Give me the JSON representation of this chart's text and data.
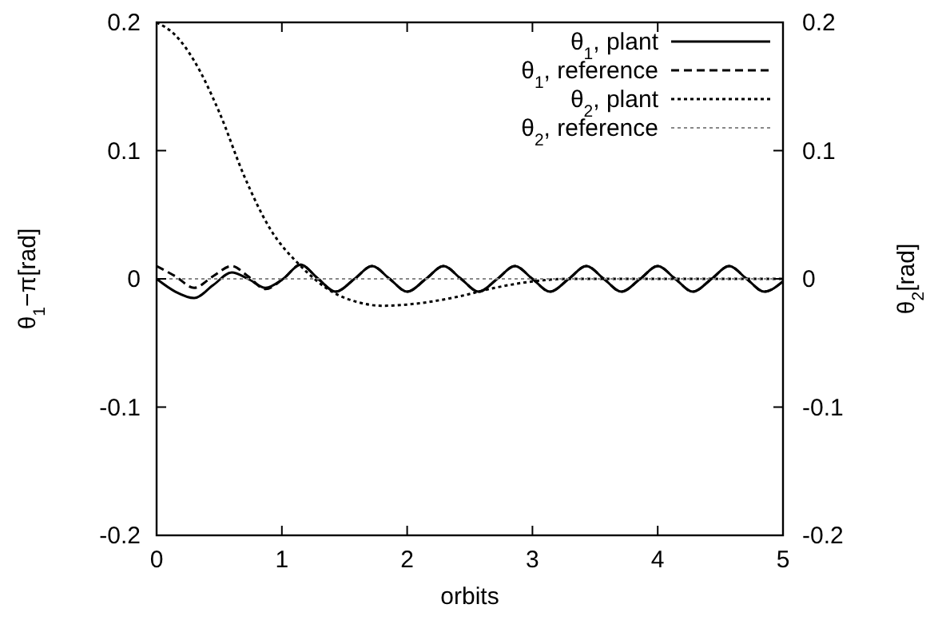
{
  "chart_data": {
    "type": "line",
    "xlabel": "orbits",
    "ylabel": "θ$_{1}$−π[rad]",
    "y2label": "θ$_{2}$[rad]",
    "xlim": [
      0,
      5
    ],
    "xticks": [
      0,
      1,
      2,
      3,
      4,
      5
    ],
    "ylim": [
      -0.2,
      0.2
    ],
    "yticks": [
      -0.2,
      -0.1,
      0,
      0.1,
      0.2
    ],
    "y2lim": [
      -0.2,
      0.2
    ],
    "y2ticks": [
      -0.2,
      -0.1,
      0,
      0.1,
      0.2
    ],
    "grid": false,
    "legend": "top right",
    "marker": "none",
    "series": [
      {
        "name": "θ$_{1}$, plant",
        "color": "#000000",
        "line_style": "solid",
        "x": [
          0,
          0.15,
          0.3,
          0.45,
          0.6,
          0.73,
          0.87,
          1.01,
          1.15,
          1.29,
          1.43,
          1.58,
          1.72,
          1.86,
          2.0,
          2.15,
          2.29,
          2.43,
          2.57,
          2.72,
          2.86,
          3.0,
          3.14,
          3.29,
          3.43,
          3.57,
          3.71,
          3.86,
          4.0,
          4.14,
          4.28,
          4.43,
          4.57,
          4.71,
          4.85,
          5.0
        ],
        "values": [
          0,
          -0.01,
          -0.015,
          -0.005,
          0.005,
          0,
          -0.007,
          0,
          0.011,
          0,
          -0.01,
          0,
          0.01,
          0,
          -0.01,
          0,
          0.01,
          0,
          -0.01,
          0,
          0.01,
          0,
          -0.01,
          0,
          0.01,
          0,
          -0.01,
          0,
          0.01,
          0,
          -0.01,
          0,
          0.01,
          0,
          -0.01,
          -0.002
        ]
      },
      {
        "name": "θ$_{1}$, reference",
        "color": "#000000",
        "line_style": "dashed",
        "x": [
          0,
          0.15,
          0.3,
          0.45,
          0.6,
          0.73,
          0.87,
          1.01,
          1.15,
          1.29,
          1.43,
          1.58,
          1.72,
          1.86,
          2.0,
          2.15,
          2.29,
          2.43,
          2.57,
          2.72,
          2.86,
          3.0,
          3.14,
          3.29,
          3.43,
          3.57,
          3.71,
          3.86,
          4.0,
          4.14,
          4.28,
          4.43,
          4.57,
          4.71,
          4.85,
          5.0
        ],
        "values": [
          0.01,
          0.002,
          -0.007,
          0.002,
          0.01,
          0.002,
          -0.008,
          0,
          0.011,
          0,
          -0.01,
          0,
          0.01,
          0,
          -0.01,
          0,
          0.01,
          0,
          -0.01,
          0,
          0.01,
          0,
          -0.01,
          0,
          0.01,
          0,
          -0.01,
          0,
          0.01,
          0,
          -0.01,
          0,
          0.01,
          0,
          -0.01,
          -0.002
        ]
      },
      {
        "name": "θ$_{2}$, plant",
        "color": "#000000",
        "line_style": "dotted",
        "axis": "y2",
        "x": [
          0,
          0.15,
          0.3,
          0.5,
          0.7,
          0.9,
          1.15,
          1.4,
          1.6,
          1.8,
          2.1,
          2.4,
          2.7,
          3.0,
          3.3,
          4.0,
          5.0
        ],
        "values": [
          0.2,
          0.19,
          0.17,
          0.13,
          0.08,
          0.04,
          0.01,
          -0.01,
          -0.018,
          -0.021,
          -0.019,
          -0.014,
          -0.007,
          -0.002,
          0,
          0,
          0
        ]
      },
      {
        "name": "θ$_{2}$, reference",
        "color": "#888888",
        "line_style": "dotted",
        "axis": "y2",
        "x": [
          0,
          5
        ],
        "values": [
          0,
          0
        ]
      }
    ]
  }
}
